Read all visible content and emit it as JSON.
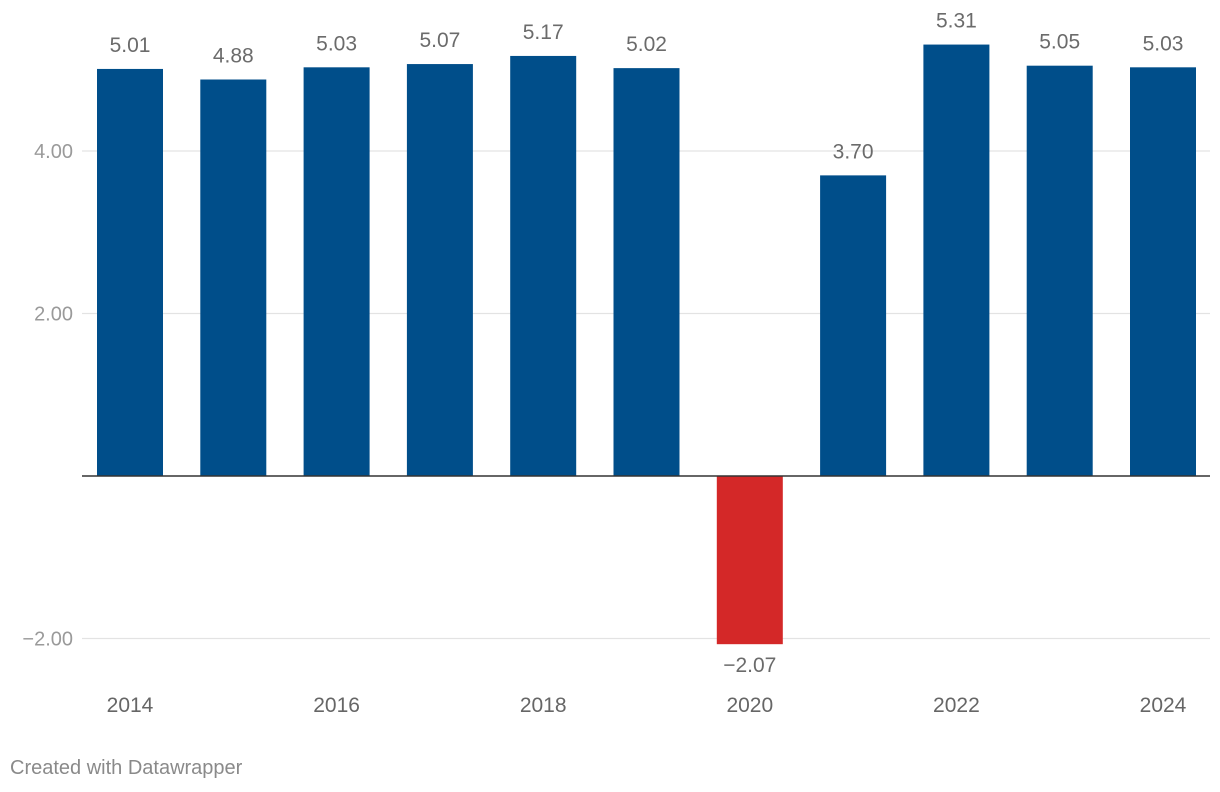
{
  "chart_data": {
    "type": "bar",
    "categories": [
      "2014",
      "2015",
      "2016",
      "2017",
      "2018",
      "2019",
      "2020",
      "2021",
      "2022",
      "2023",
      "2024"
    ],
    "values": [
      5.01,
      4.88,
      5.03,
      5.07,
      5.17,
      5.02,
      -2.07,
      3.7,
      5.31,
      5.05,
      5.03
    ],
    "value_labels": [
      "5.01",
      "4.88",
      "5.03",
      "5.07",
      "5.17",
      "5.02",
      "−2.07",
      "3.70",
      "5.31",
      "5.05",
      "5.03"
    ],
    "x_tick_labels": [
      "2014",
      "2016",
      "2018",
      "2020",
      "2022",
      "2024"
    ],
    "y_ticks": [
      {
        "value": 4,
        "label": "4.00"
      },
      {
        "value": 2,
        "label": "2.00"
      },
      {
        "value": -2,
        "label": "−2.00"
      }
    ],
    "ylim": [
      -2.5,
      5.75
    ],
    "title": "",
    "xlabel": "",
    "ylabel": "",
    "grid": true,
    "colors": {
      "positive": "#004e8a",
      "negative": "#d42828",
      "grid": "#e3e3e3",
      "baseline": "#333333",
      "tick_text": "#9a9a9a",
      "label_text": "#6b6b6b",
      "year_text": "#666666"
    }
  },
  "footer": {
    "credit": "Created with Datawrapper"
  }
}
